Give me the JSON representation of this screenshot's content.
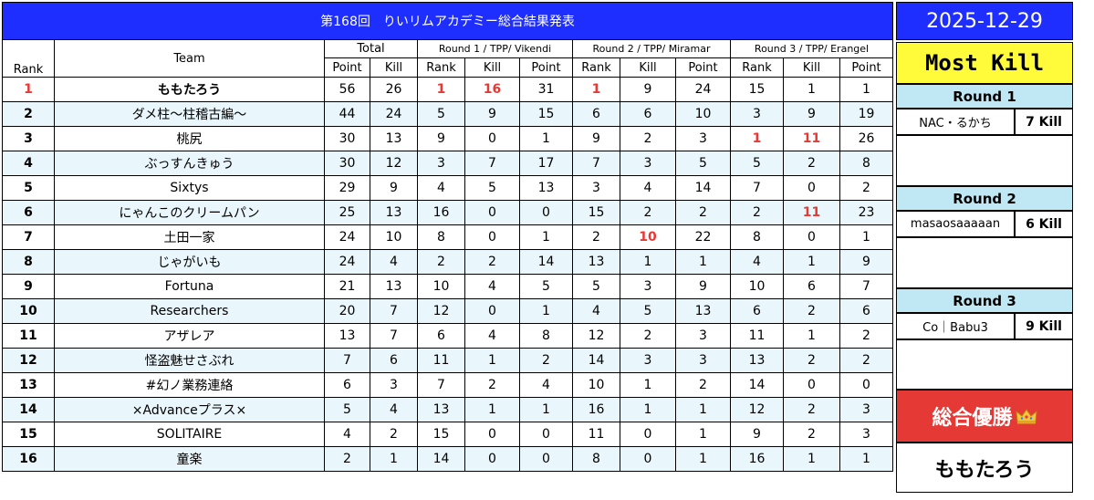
{
  "title": "第168回　りいリムアカデミー総合結果発表",
  "date": "2025-12-29",
  "headers": {
    "rank": "Rank",
    "team": "Team",
    "total": "Total",
    "round1": "Round 1 / TPP/ Vikendi",
    "round2": "Round 2 / TPP/ Miramar",
    "round3": "Round 3 / TPP/ Erangel",
    "point": "Point",
    "kill": "Kill",
    "rank_sub": "Rank"
  },
  "teams": [
    {
      "rank": "1",
      "team": "ももたろう",
      "total_point": "56",
      "total_kill": "26",
      "r1_rank": "1",
      "r1_kill": "16",
      "r1_point": "31",
      "r2_rank": "1",
      "r2_kill": "9",
      "r2_point": "24",
      "r3_rank": "15",
      "r3_kill": "1",
      "r3_point": "1"
    },
    {
      "rank": "2",
      "team": "ダメ柱〜柱稽古編〜",
      "total_point": "44",
      "total_kill": "24",
      "r1_rank": "5",
      "r1_kill": "9",
      "r1_point": "15",
      "r2_rank": "6",
      "r2_kill": "6",
      "r2_point": "10",
      "r3_rank": "3",
      "r3_kill": "9",
      "r3_point": "19"
    },
    {
      "rank": "3",
      "team": "桃尻",
      "total_point": "30",
      "total_kill": "13",
      "r1_rank": "9",
      "r1_kill": "0",
      "r1_point": "1",
      "r2_rank": "9",
      "r2_kill": "2",
      "r2_point": "3",
      "r3_rank": "1",
      "r3_kill": "11",
      "r3_point": "26"
    },
    {
      "rank": "4",
      "team": "ぶっすんきゅう",
      "total_point": "30",
      "total_kill": "12",
      "r1_rank": "3",
      "r1_kill": "7",
      "r1_point": "17",
      "r2_rank": "7",
      "r2_kill": "3",
      "r2_point": "5",
      "r3_rank": "5",
      "r3_kill": "2",
      "r3_point": "8"
    },
    {
      "rank": "5",
      "team": "Sixtys",
      "total_point": "29",
      "total_kill": "9",
      "r1_rank": "4",
      "r1_kill": "5",
      "r1_point": "13",
      "r2_rank": "3",
      "r2_kill": "4",
      "r2_point": "14",
      "r3_rank": "7",
      "r3_kill": "0",
      "r3_point": "2"
    },
    {
      "rank": "6",
      "team": "にゃんこのクリームパン",
      "total_point": "25",
      "total_kill": "13",
      "r1_rank": "16",
      "r1_kill": "0",
      "r1_point": "0",
      "r2_rank": "15",
      "r2_kill": "2",
      "r2_point": "2",
      "r3_rank": "2",
      "r3_kill": "11",
      "r3_point": "23"
    },
    {
      "rank": "7",
      "team": "土田一家",
      "total_point": "24",
      "total_kill": "10",
      "r1_rank": "8",
      "r1_kill": "0",
      "r1_point": "1",
      "r2_rank": "2",
      "r2_kill": "10",
      "r2_point": "22",
      "r3_rank": "8",
      "r3_kill": "0",
      "r3_point": "1"
    },
    {
      "rank": "8",
      "team": "じゃがいも",
      "total_point": "24",
      "total_kill": "4",
      "r1_rank": "2",
      "r1_kill": "2",
      "r1_point": "14",
      "r2_rank": "13",
      "r2_kill": "1",
      "r2_point": "1",
      "r3_rank": "4",
      "r3_kill": "1",
      "r3_point": "9"
    },
    {
      "rank": "9",
      "team": "Fortuna",
      "total_point": "21",
      "total_kill": "13",
      "r1_rank": "10",
      "r1_kill": "4",
      "r1_point": "5",
      "r2_rank": "5",
      "r2_kill": "3",
      "r2_point": "9",
      "r3_rank": "10",
      "r3_kill": "6",
      "r3_point": "7"
    },
    {
      "rank": "10",
      "team": "Researchers",
      "total_point": "20",
      "total_kill": "7",
      "r1_rank": "12",
      "r1_kill": "0",
      "r1_point": "1",
      "r2_rank": "4",
      "r2_kill": "5",
      "r2_point": "13",
      "r3_rank": "6",
      "r3_kill": "2",
      "r3_point": "6"
    },
    {
      "rank": "11",
      "team": "アザレア",
      "total_point": "13",
      "total_kill": "7",
      "r1_rank": "6",
      "r1_kill": "4",
      "r1_point": "8",
      "r2_rank": "12",
      "r2_kill": "2",
      "r2_point": "3",
      "r3_rank": "11",
      "r3_kill": "1",
      "r3_point": "2"
    },
    {
      "rank": "12",
      "team": "怪盗魅せさぶれ",
      "total_point": "7",
      "total_kill": "6",
      "r1_rank": "11",
      "r1_kill": "1",
      "r1_point": "2",
      "r2_rank": "14",
      "r2_kill": "3",
      "r2_point": "3",
      "r3_rank": "13",
      "r3_kill": "2",
      "r3_point": "2"
    },
    {
      "rank": "13",
      "team": "#幻ノ業務連絡",
      "total_point": "6",
      "total_kill": "3",
      "r1_rank": "7",
      "r1_kill": "2",
      "r1_point": "4",
      "r2_rank": "10",
      "r2_kill": "1",
      "r2_point": "2",
      "r3_rank": "14",
      "r3_kill": "0",
      "r3_point": "0"
    },
    {
      "rank": "14",
      "team": "×Advanceプラス×",
      "total_point": "5",
      "total_kill": "4",
      "r1_rank": "13",
      "r1_kill": "1",
      "r1_point": "1",
      "r2_rank": "16",
      "r2_kill": "1",
      "r2_point": "1",
      "r3_rank": "12",
      "r3_kill": "2",
      "r3_point": "3"
    },
    {
      "rank": "15",
      "team": "SOLITAIRE",
      "total_point": "4",
      "total_kill": "2",
      "r1_rank": "15",
      "r1_kill": "0",
      "r1_point": "0",
      "r2_rank": "11",
      "r2_kill": "0",
      "r2_point": "1",
      "r3_rank": "9",
      "r3_kill": "2",
      "r3_point": "3"
    },
    {
      "rank": "16",
      "team": "童楽",
      "total_point": "2",
      "total_kill": "1",
      "r1_rank": "14",
      "r1_kill": "0",
      "r1_point": "0",
      "r2_rank": "8",
      "r2_kill": "0",
      "r2_point": "1",
      "r3_rank": "16",
      "r3_kill": "1",
      "r3_point": "1"
    }
  ],
  "most_kill": {
    "title": "Most Kill",
    "rounds": [
      {
        "label": "Round 1",
        "player": "NAC・るかち",
        "kills": "7 Kill"
      },
      {
        "label": "Round 2",
        "player": "masaosaaaaan",
        "kills": "6 Kill"
      },
      {
        "label": "Round 3",
        "player": "Co｜Babu3",
        "kills": "9 Kill"
      }
    ]
  },
  "overall_winner": {
    "label": "総合優勝",
    "icon": "crown-icon",
    "team": "ももたろう"
  },
  "colors": {
    "title_bg": "#1e2eff",
    "highlight": "#e53935",
    "row_alt": "#e9f6fb",
    "most_kill_bg": "#fffa3a",
    "round_hdr_bg": "#bfe7f4",
    "winner_bg": "#e53935"
  }
}
